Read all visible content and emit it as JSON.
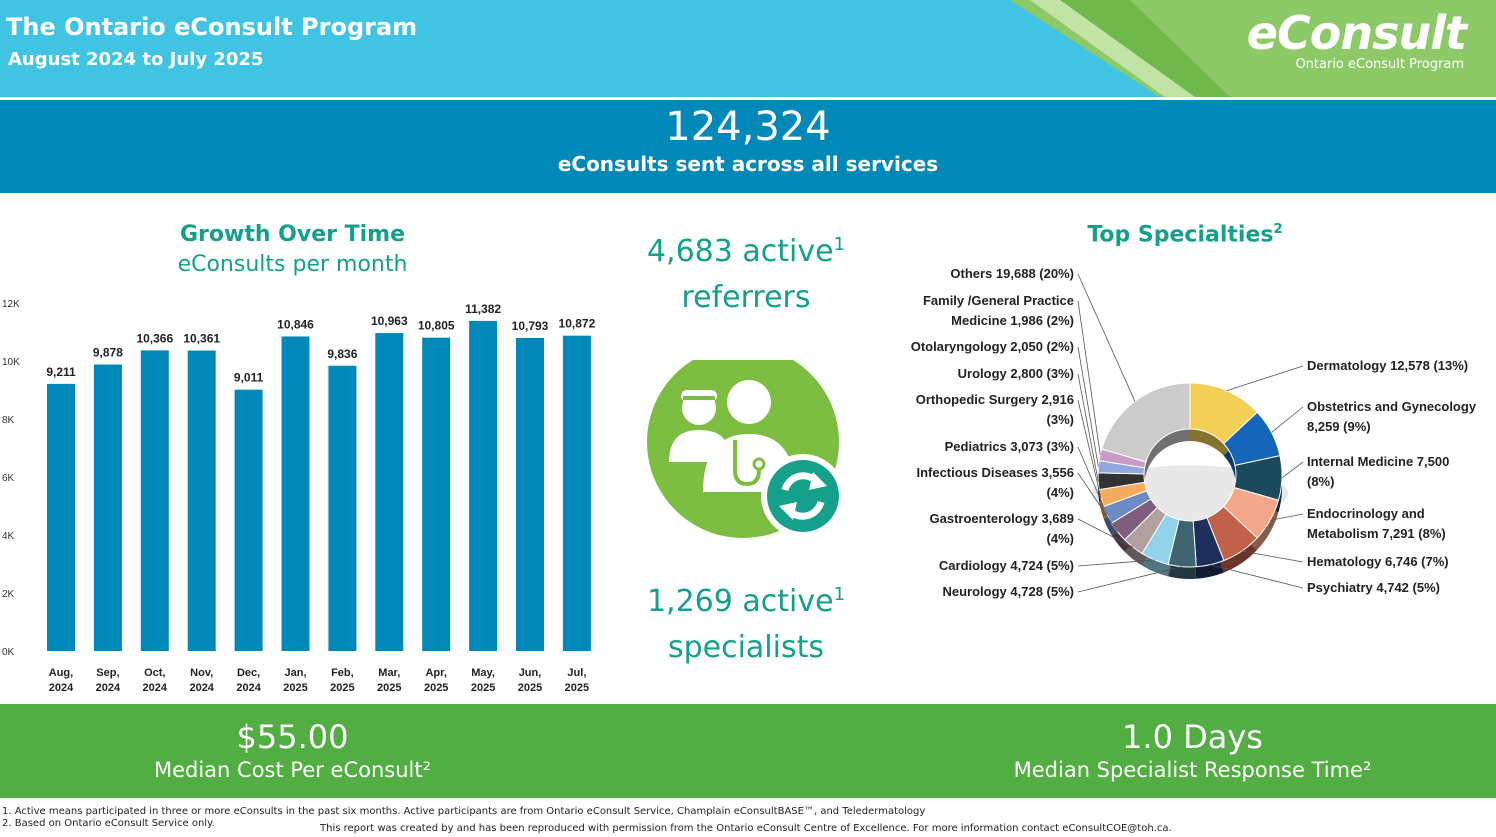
{
  "header": {
    "title": "The Ontario eConsult Program",
    "subtitle": "August 2024 to July 2025",
    "logo_text": "eConsult",
    "logo_subtext": "Ontario eConsult Program"
  },
  "total": {
    "value": "124,324",
    "label": "eConsults sent across all services"
  },
  "growth": {
    "title": "Growth Over Time",
    "subtitle": "eConsults per month"
  },
  "referrers": {
    "line1": "4,683 active",
    "line2": "referrers",
    "sup": "1"
  },
  "specialists": {
    "line1": "1,269 active",
    "line2": "specialists",
    "sup": "1"
  },
  "specialties": {
    "title": "Top Specialties",
    "sup": "2"
  },
  "cost": {
    "value": "$55.00",
    "label": "Median Cost Per eConsult²"
  },
  "response": {
    "value": "1.0  Days",
    "label": "Median Specialist Response Time²"
  },
  "footnotes": {
    "note1": "1. Active means participated in three or more eConsults in the past six months. Active participants are from Ontario eConsult Service, Champlain eConsultBASE™, and Teledermatology",
    "note2": "2. Based on Ontario eConsult Service only.",
    "credit": "This report was created by and has been reproduced with permission from the Ontario eConsult Centre of Excellence. For more information contact eConsultCOE@toh.ca."
  },
  "chart_data": [
    {
      "type": "bar",
      "title": "Growth Over Time",
      "subtitle": "eConsults per month",
      "categories": [
        [
          "Aug,",
          "2024"
        ],
        [
          "Sep,",
          "2024"
        ],
        [
          "Oct,",
          "2024"
        ],
        [
          "Nov,",
          "2024"
        ],
        [
          "Dec,",
          "2024"
        ],
        [
          "Jan,",
          "2025"
        ],
        [
          "Feb,",
          "2025"
        ],
        [
          "Mar,",
          "2025"
        ],
        [
          "Apr,",
          "2025"
        ],
        [
          "May,",
          "2025"
        ],
        [
          "Jun,",
          "2025"
        ],
        [
          "Jul,",
          "2025"
        ]
      ],
      "values": [
        9211,
        9878,
        10366,
        10361,
        9011,
        10846,
        9836,
        10963,
        10805,
        11382,
        10793,
        10872
      ],
      "value_labels": [
        "9,211",
        "9,878",
        "10,366",
        "10,361",
        "9,011",
        "10,846",
        "9,836",
        "10,963",
        "10,805",
        "11,382",
        "10,793",
        "10,872"
      ],
      "ylim": [
        0,
        12000
      ],
      "yticks": [
        0,
        2000,
        4000,
        6000,
        8000,
        10000,
        12000
      ],
      "ytick_labels": [
        "0K",
        "2K",
        "4K",
        "6K",
        "8K",
        "10K",
        "12K"
      ],
      "grid": false,
      "bar_color": "#0088b8"
    },
    {
      "type": "pie",
      "title": "Top Specialties",
      "slices": [
        {
          "name": "Dermatology",
          "value": 12578,
          "label": [
            "Dermatology 12,578 (13%)"
          ],
          "color": "#f2cf55"
        },
        {
          "name": "Obstetrics and Gynecology",
          "value": 8259,
          "label": [
            "Obstetrics and Gynecology",
            "8,259 (9%)"
          ],
          "color": "#1565b8"
        },
        {
          "name": "Internal Medicine",
          "value": 7500,
          "label": [
            "Internal Medicine 7,500",
            "(8%)"
          ],
          "color": "#1b4a5e"
        },
        {
          "name": "Endocrinology and Metabolism",
          "value": 7291,
          "label": [
            "Endocrinology and",
            "Metabolism 7,291 (8%)"
          ],
          "color": "#f6a789"
        },
        {
          "name": "Hematology",
          "value": 6746,
          "label": [
            "Hematology 6,746 (7%)"
          ],
          "color": "#c2614a"
        },
        {
          "name": "Psychiatry",
          "value": 4742,
          "label": [
            "Psychiatry 4,742 (5%)"
          ],
          "color": "#1e2f5e"
        },
        {
          "name": "Neurology",
          "value": 4728,
          "label": [
            "Neurology 4,728 (5%)"
          ],
          "color": "#3f6470"
        },
        {
          "name": "Cardiology",
          "value": 4724,
          "label": [
            "Cardiology 4,724 (5%)"
          ],
          "color": "#92d3ea"
        },
        {
          "name": "Gastroenterology",
          "value": 3689,
          "label": [
            "Gastroenterology 3,689",
            "(4%)"
          ],
          "color": "#b2a0a0"
        },
        {
          "name": "Infectious Diseases",
          "value": 3556,
          "label": [
            "Infectious Diseases 3,556",
            "(4%)"
          ],
          "color": "#7f5d7c"
        },
        {
          "name": "Pediatrics",
          "value": 3073,
          "label": [
            "Pediatrics 3,073 (3%)"
          ],
          "color": "#6c8ac6"
        },
        {
          "name": "Orthopedic Surgery",
          "value": 2916,
          "label": [
            "Orthopedic Surgery 2,916",
            "(3%)"
          ],
          "color": "#f5ac5c"
        },
        {
          "name": "Urology",
          "value": 2800,
          "label": [
            "Urology 2,800 (3%)"
          ],
          "color": "#323232"
        },
        {
          "name": "Otolaryngology",
          "value": 2050,
          "label": [
            "Otolaryngology 2,050 (2%)"
          ],
          "color": "#8fa8e0"
        },
        {
          "name": "Family /General Practice Medicine",
          "value": 1986,
          "label": [
            "Family /General Practice",
            "Medicine 1,986 (2%)"
          ],
          "color": "#c79ac8"
        },
        {
          "name": "Others",
          "value": 19688,
          "label": [
            "Others 19,688 (20%)"
          ],
          "color": "#cbcbcb"
        }
      ]
    }
  ]
}
